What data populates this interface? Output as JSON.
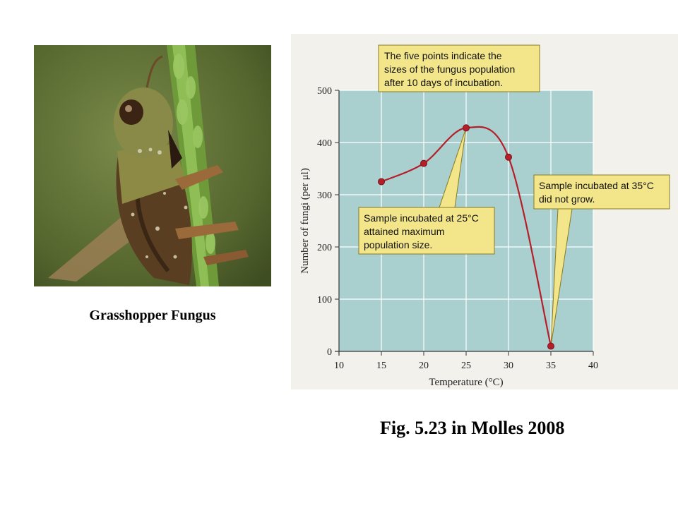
{
  "photo": {
    "caption": "Grasshopper Fungus"
  },
  "figure_caption": "Fig. 5.23 in Molles 2008",
  "callouts": {
    "top": [
      "The five points indicate the",
      "sizes of the fungus population",
      "after 10 days of incubation."
    ],
    "middle": [
      "Sample incubated at 25°C",
      "attained maximum",
      "population size."
    ],
    "right": [
      "Sample incubated at 35°C",
      "did not grow."
    ]
  },
  "colors": {
    "plot_background": "#a9cfcf",
    "curve": "#b51f2a",
    "callout_fill": "#f3e58a",
    "callout_border": "#8a7a20",
    "grid": "#ffffff"
  },
  "chart_data": {
    "type": "line",
    "xlabel": "Temperature (°C)",
    "ylabel": "Number of fungi (per μl)",
    "xlim": [
      10,
      40
    ],
    "ylim": [
      0,
      500
    ],
    "xticks": [
      10,
      15,
      20,
      25,
      30,
      35,
      40
    ],
    "yticks": [
      0,
      100,
      200,
      300,
      400,
      500
    ],
    "grid": true,
    "series": [
      {
        "x": [
          15,
          20,
          25,
          30,
          35
        ],
        "y": [
          325,
          360,
          428,
          372,
          10
        ]
      }
    ]
  }
}
